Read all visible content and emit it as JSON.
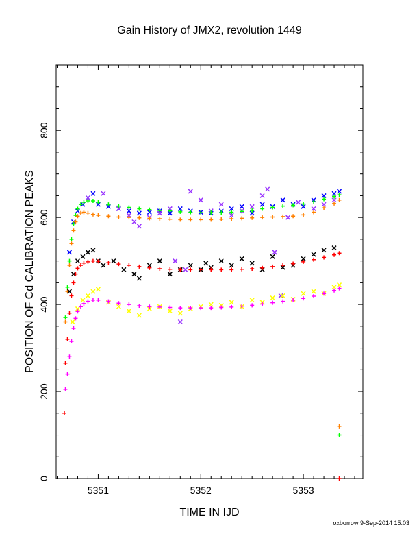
{
  "chart_data": {
    "type": "scatter",
    "title": "Gain History of JMX2, revolution 1449",
    "xlabel": "TIME IN IJD",
    "ylabel": "POSITION OF Cd CALIBRATION PEAKS",
    "xlim": [
      5350.59,
      5353.58
    ],
    "ylim": [
      0,
      950
    ],
    "xticks": [
      5351,
      5352,
      5353
    ],
    "yticks": [
      0,
      200,
      400,
      600,
      800
    ],
    "grid": false,
    "legend": "none",
    "footer": "oxborrow  9-Sep-2014 15:03",
    "series": [
      {
        "color": "#0000ff",
        "marker": "x",
        "x": [
          5350.72,
          5350.76,
          5350.8,
          5350.85,
          5350.9,
          5350.95,
          5351.0,
          5351.1,
          5351.2,
          5351.3,
          5351.4,
          5351.5,
          5351.6,
          5351.7,
          5351.8,
          5351.9,
          5352.0,
          5352.1,
          5352.2,
          5352.3,
          5352.4,
          5352.5,
          5352.6,
          5352.7,
          5352.8,
          5352.9,
          5353.0,
          5353.1,
          5353.2,
          5353.3,
          5353.35
        ],
        "y": [
          520,
          590,
          615,
          630,
          645,
          655,
          630,
          625,
          620,
          615,
          610,
          612,
          615,
          610,
          620,
          615,
          612,
          610,
          615,
          620,
          625,
          610,
          630,
          625,
          640,
          630,
          625,
          640,
          650,
          655,
          660
        ]
      },
      {
        "color": "#9933ff",
        "marker": "x",
        "x": [
          5350.9,
          5351.05,
          5351.2,
          5351.3,
          5351.35,
          5351.4,
          5351.5,
          5351.6,
          5351.7,
          5351.75,
          5351.8,
          5351.85,
          5351.9,
          5352.0,
          5352.1,
          5352.2,
          5352.3,
          5352.4,
          5352.5,
          5352.6,
          5352.65,
          5352.72,
          5352.78,
          5352.85,
          5352.95,
          5353.1,
          5353.2,
          5353.3
        ],
        "y": [
          645,
          655,
          620,
          605,
          590,
          580,
          600,
          610,
          620,
          500,
          360,
          480,
          660,
          640,
          615,
          630,
          605,
          615,
          625,
          650,
          665,
          520,
          420,
          600,
          635,
          620,
          630,
          640
        ]
      },
      {
        "color": "#00ff00",
        "marker": "+",
        "x": [
          5350.68,
          5350.7,
          5350.72,
          5350.74,
          5350.76,
          5350.78,
          5350.8,
          5350.83,
          5350.86,
          5350.9,
          5350.95,
          5351.0,
          5351.1,
          5351.2,
          5351.3,
          5351.4,
          5351.5,
          5351.6,
          5351.7,
          5351.8,
          5351.9,
          5352.0,
          5352.1,
          5352.2,
          5352.3,
          5352.4,
          5352.5,
          5352.6,
          5352.7,
          5352.8,
          5352.9,
          5353.0,
          5353.1,
          5353.2,
          5353.3,
          5353.35
        ],
        "y": [
          370,
          440,
          500,
          550,
          585,
          605,
          620,
          630,
          635,
          638,
          638,
          635,
          630,
          626,
          623,
          620,
          618,
          616,
          615,
          613,
          612,
          611,
          611,
          611,
          612,
          614,
          616,
          620,
          623,
          626,
          628,
          631,
          636,
          642,
          648,
          652
        ]
      },
      {
        "color": "#ff8000",
        "marker": "+",
        "x": [
          5350.68,
          5350.7,
          5350.72,
          5350.74,
          5350.76,
          5350.78,
          5350.8,
          5350.83,
          5350.86,
          5350.9,
          5350.95,
          5351.0,
          5351.1,
          5351.2,
          5351.3,
          5351.4,
          5351.5,
          5351.6,
          5351.7,
          5351.8,
          5351.9,
          5352.0,
          5352.1,
          5352.2,
          5352.3,
          5352.4,
          5352.5,
          5352.6,
          5352.7,
          5352.8,
          5352.9,
          5353.0,
          5353.1,
          5353.2,
          5353.3,
          5353.35
        ],
        "y": [
          360,
          430,
          490,
          540,
          570,
          590,
          603,
          610,
          612,
          610,
          607,
          605,
          603,
          601,
          600,
          599,
          598,
          597,
          596,
          595,
          595,
          595,
          595,
          596,
          597,
          598,
          599,
          600,
          601,
          602,
          603,
          606,
          612,
          622,
          632,
          640
        ]
      },
      {
        "color": "#000000",
        "marker": "x",
        "x": [
          5350.72,
          5350.76,
          5350.8,
          5350.85,
          5350.9,
          5350.95,
          5351.0,
          5351.05,
          5351.15,
          5351.25,
          5351.35,
          5351.4,
          5351.5,
          5351.6,
          5351.7,
          5351.8,
          5351.9,
          5352.0,
          5352.05,
          5352.1,
          5352.2,
          5352.3,
          5352.4,
          5352.5,
          5352.6,
          5352.7,
          5352.8,
          5352.9,
          5353.0,
          5353.1,
          5353.2,
          5353.3
        ],
        "y": [
          430,
          470,
          500,
          510,
          520,
          525,
          500,
          490,
          500,
          480,
          470,
          460,
          490,
          500,
          470,
          480,
          490,
          480,
          495,
          485,
          500,
          490,
          505,
          495,
          480,
          510,
          485,
          490,
          505,
          515,
          525,
          530
        ]
      },
      {
        "color": "#ff0000",
        "marker": "+",
        "x": [
          5350.68,
          5350.7,
          5350.72,
          5350.74,
          5350.76,
          5350.78,
          5350.8,
          5350.83,
          5350.86,
          5350.9,
          5350.95,
          5351.0,
          5351.1,
          5351.2,
          5351.3,
          5351.4,
          5351.5,
          5351.6,
          5351.7,
          5351.8,
          5351.9,
          5352.0,
          5352.1,
          5352.2,
          5352.3,
          5352.4,
          5352.5,
          5352.6,
          5352.7,
          5352.8,
          5352.9,
          5353.0,
          5353.1,
          5353.2,
          5353.3,
          5353.35
        ],
        "y": [
          265,
          320,
          380,
          420,
          450,
          470,
          483,
          490,
          495,
          498,
          500,
          499,
          496,
          493,
          490,
          487,
          484,
          482,
          481,
          480,
          480,
          480,
          480,
          480,
          480,
          481,
          482,
          484,
          487,
          490,
          494,
          498,
          503,
          508,
          514,
          518
        ]
      },
      {
        "color": "#ffff00",
        "marker": "x",
        "x": [
          5350.75,
          5350.8,
          5350.85,
          5350.9,
          5350.95,
          5351.0,
          5351.1,
          5351.2,
          5351.3,
          5351.4,
          5351.5,
          5351.6,
          5351.7,
          5351.8,
          5351.9,
          5352.0,
          5352.1,
          5352.2,
          5352.3,
          5352.4,
          5352.5,
          5352.6,
          5352.7,
          5352.8,
          5352.9,
          5353.0,
          5353.1,
          5353.2,
          5353.3,
          5353.35
        ],
        "y": [
          360,
          390,
          410,
          420,
          430,
          435,
          405,
          395,
          385,
          375,
          390,
          395,
          385,
          380,
          390,
          395,
          400,
          398,
          405,
          395,
          410,
          405,
          415,
          420,
          412,
          425,
          430,
          425,
          440,
          445
        ]
      },
      {
        "color": "#ff00ff",
        "marker": "+",
        "x": [
          5350.68,
          5350.7,
          5350.72,
          5350.74,
          5350.76,
          5350.78,
          5350.8,
          5350.83,
          5350.86,
          5350.9,
          5350.95,
          5351.0,
          5351.1,
          5351.2,
          5351.3,
          5351.4,
          5351.5,
          5351.6,
          5351.7,
          5351.8,
          5351.9,
          5352.0,
          5352.1,
          5352.2,
          5352.3,
          5352.4,
          5352.5,
          5352.6,
          5352.7,
          5352.8,
          5352.9,
          5353.0,
          5353.1,
          5353.2,
          5353.3,
          5353.35
        ],
        "y": [
          205,
          240,
          280,
          315,
          345,
          368,
          384,
          395,
          402,
          407,
          410,
          410,
          407,
          403,
          400,
          397,
          395,
          394,
          393,
          392,
          392,
          392,
          392,
          393,
          394,
          396,
          398,
          401,
          404,
          407,
          410,
          414,
          419,
          425,
          432,
          437
        ]
      },
      {
        "color": "#ff0000",
        "marker": "+",
        "x": [
          5350.67,
          5353.35
        ],
        "y": [
          150,
          0
        ]
      },
      {
        "color": "#ff8000",
        "marker": "+",
        "x": [
          5353.35
        ],
        "y": [
          120
        ]
      },
      {
        "color": "#00ff00",
        "marker": "+",
        "x": [
          5353.35
        ],
        "y": [
          100
        ]
      }
    ]
  }
}
